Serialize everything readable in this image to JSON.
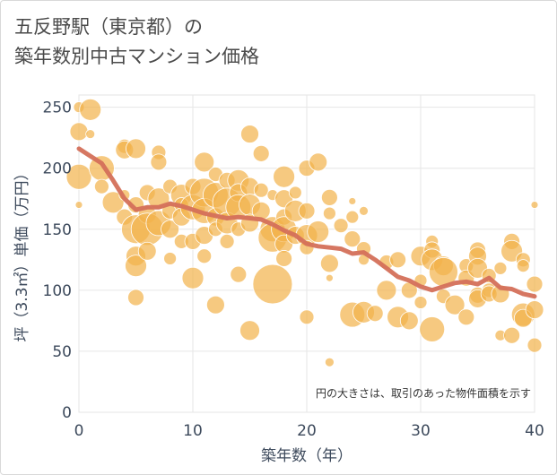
{
  "title_line1": "五反野駅（東京都）の",
  "title_line2": "築年数別中古マンション価格",
  "chart_data": {
    "type": "scatter",
    "title": "五反野駅（東京都）の 築年数別中古マンション価格",
    "xlabel": "築年数（年）",
    "ylabel": "坪（3.3㎡）単価（万円）",
    "xlim": [
      0,
      40
    ],
    "ylim": [
      0,
      260
    ],
    "xticks": [
      "0",
      "10",
      "20",
      "30",
      "40"
    ],
    "yticks": [
      "0",
      "50",
      "100",
      "150",
      "200",
      "250"
    ],
    "grid": true,
    "note": "円の大きさは、取引のあった物件面積を示す",
    "colors": {
      "bubble": "#f2b24a",
      "trend": "#d4705a"
    },
    "trend": {
      "x": [
        0,
        1,
        2,
        3,
        4,
        5,
        6,
        7,
        8,
        9,
        10,
        11,
        12,
        13,
        14,
        15,
        16,
        17,
        18,
        19,
        20,
        21,
        22,
        23,
        24,
        25,
        26,
        27,
        28,
        29,
        30,
        31,
        32,
        33,
        34,
        35,
        36,
        37,
        38,
        39,
        40
      ],
      "y": [
        216,
        210,
        204,
        190,
        175,
        166,
        168,
        168,
        171,
        169,
        166,
        163,
        161,
        159,
        160,
        159,
        158,
        154,
        149,
        145,
        138,
        136,
        135,
        134,
        130,
        131,
        125,
        118,
        111,
        108,
        103,
        100,
        103,
        106,
        107,
        105,
        110,
        102,
        101,
        97,
        95
      ]
    },
    "points": [
      {
        "x": 0,
        "y": 250,
        "s": 6
      },
      {
        "x": 0,
        "y": 230,
        "s": 10
      },
      {
        "x": 0,
        "y": 193,
        "s": 14
      },
      {
        "x": 0,
        "y": 170,
        "s": 4
      },
      {
        "x": 1,
        "y": 248,
        "s": 12
      },
      {
        "x": 1,
        "y": 228,
        "s": 5
      },
      {
        "x": 2,
        "y": 200,
        "s": 14
      },
      {
        "x": 2,
        "y": 185,
        "s": 8
      },
      {
        "x": 3,
        "y": 172,
        "s": 12
      },
      {
        "x": 4,
        "y": 218,
        "s": 8
      },
      {
        "x": 4,
        "y": 215,
        "s": 10
      },
      {
        "x": 4,
        "y": 178,
        "s": 6
      },
      {
        "x": 4,
        "y": 160,
        "s": 9
      },
      {
        "x": 5,
        "y": 216,
        "s": 11
      },
      {
        "x": 5,
        "y": 170,
        "s": 9
      },
      {
        "x": 5,
        "y": 150,
        "s": 16
      },
      {
        "x": 5,
        "y": 128,
        "s": 11
      },
      {
        "x": 5,
        "y": 120,
        "s": 12
      },
      {
        "x": 5,
        "y": 94,
        "s": 9
      },
      {
        "x": 6,
        "y": 180,
        "s": 9
      },
      {
        "x": 6,
        "y": 162,
        "s": 10
      },
      {
        "x": 6,
        "y": 150,
        "s": 18
      },
      {
        "x": 6,
        "y": 132,
        "s": 10
      },
      {
        "x": 7,
        "y": 213,
        "s": 8
      },
      {
        "x": 7,
        "y": 205,
        "s": 9
      },
      {
        "x": 7,
        "y": 175,
        "s": 12
      },
      {
        "x": 7,
        "y": 155,
        "s": 14
      },
      {
        "x": 8,
        "y": 185,
        "s": 8
      },
      {
        "x": 8,
        "y": 165,
        "s": 9
      },
      {
        "x": 8,
        "y": 150,
        "s": 10
      },
      {
        "x": 8,
        "y": 126,
        "s": 7
      },
      {
        "x": 9,
        "y": 178,
        "s": 12
      },
      {
        "x": 9,
        "y": 170,
        "s": 8
      },
      {
        "x": 9,
        "y": 160,
        "s": 10
      },
      {
        "x": 9,
        "y": 140,
        "s": 8
      },
      {
        "x": 10,
        "y": 185,
        "s": 9
      },
      {
        "x": 10,
        "y": 168,
        "s": 14
      },
      {
        "x": 10,
        "y": 140,
        "s": 9
      },
      {
        "x": 10,
        "y": 110,
        "s": 12
      },
      {
        "x": 11,
        "y": 205,
        "s": 11
      },
      {
        "x": 11,
        "y": 180,
        "s": 16
      },
      {
        "x": 11,
        "y": 165,
        "s": 14
      },
      {
        "x": 11,
        "y": 145,
        "s": 10
      },
      {
        "x": 11,
        "y": 128,
        "s": 8
      },
      {
        "x": 12,
        "y": 195,
        "s": 8
      },
      {
        "x": 12,
        "y": 178,
        "s": 14
      },
      {
        "x": 12,
        "y": 160,
        "s": 10
      },
      {
        "x": 12,
        "y": 150,
        "s": 8
      },
      {
        "x": 12,
        "y": 88,
        "s": 10
      },
      {
        "x": 13,
        "y": 190,
        "s": 9
      },
      {
        "x": 13,
        "y": 172,
        "s": 16
      },
      {
        "x": 13,
        "y": 155,
        "s": 12
      },
      {
        "x": 13,
        "y": 140,
        "s": 8
      },
      {
        "x": 14,
        "y": 190,
        "s": 12
      },
      {
        "x": 14,
        "y": 180,
        "s": 10
      },
      {
        "x": 14,
        "y": 168,
        "s": 14
      },
      {
        "x": 14,
        "y": 150,
        "s": 8
      },
      {
        "x": 14,
        "y": 113,
        "s": 9
      },
      {
        "x": 15,
        "y": 185,
        "s": 10
      },
      {
        "x": 15,
        "y": 170,
        "s": 12
      },
      {
        "x": 15,
        "y": 155,
        "s": 10
      },
      {
        "x": 15,
        "y": 67,
        "s": 11
      },
      {
        "x": 15,
        "y": 228,
        "s": 10
      },
      {
        "x": 16,
        "y": 212,
        "s": 9
      },
      {
        "x": 16,
        "y": 182,
        "s": 8
      },
      {
        "x": 16,
        "y": 165,
        "s": 10
      },
      {
        "x": 17,
        "y": 178,
        "s": 6
      },
      {
        "x": 17,
        "y": 150,
        "s": 14
      },
      {
        "x": 17,
        "y": 143,
        "s": 16
      },
      {
        "x": 17,
        "y": 105,
        "s": 22
      },
      {
        "x": 18,
        "y": 193,
        "s": 12
      },
      {
        "x": 18,
        "y": 175,
        "s": 10
      },
      {
        "x": 18,
        "y": 160,
        "s": 9
      },
      {
        "x": 18,
        "y": 150,
        "s": 14
      },
      {
        "x": 18,
        "y": 138,
        "s": 10
      },
      {
        "x": 18,
        "y": 126,
        "s": 9
      },
      {
        "x": 19,
        "y": 180,
        "s": 7
      },
      {
        "x": 19,
        "y": 165,
        "s": 12
      },
      {
        "x": 19,
        "y": 145,
        "s": 10
      },
      {
        "x": 20,
        "y": 200,
        "s": 9
      },
      {
        "x": 20,
        "y": 165,
        "s": 9
      },
      {
        "x": 20,
        "y": 145,
        "s": 12
      },
      {
        "x": 20,
        "y": 135,
        "s": 8
      },
      {
        "x": 20,
        "y": 78,
        "s": 8
      },
      {
        "x": 21,
        "y": 205,
        "s": 10
      },
      {
        "x": 21,
        "y": 148,
        "s": 12
      },
      {
        "x": 22,
        "y": 176,
        "s": 9
      },
      {
        "x": 22,
        "y": 163,
        "s": 7
      },
      {
        "x": 22,
        "y": 122,
        "s": 10
      },
      {
        "x": 22,
        "y": 110,
        "s": 4
      },
      {
        "x": 22,
        "y": 41,
        "s": 5
      },
      {
        "x": 23,
        "y": 153,
        "s": 8
      },
      {
        "x": 24,
        "y": 173,
        "s": 4
      },
      {
        "x": 24,
        "y": 160,
        "s": 7
      },
      {
        "x": 24,
        "y": 142,
        "s": 9
      },
      {
        "x": 24,
        "y": 80,
        "s": 14
      },
      {
        "x": 25,
        "y": 165,
        "s": 5
      },
      {
        "x": 25,
        "y": 134,
        "s": 8
      },
      {
        "x": 25,
        "y": 125,
        "s": 6
      },
      {
        "x": 25,
        "y": 82,
        "s": 12
      },
      {
        "x": 26,
        "y": 81,
        "s": 9
      },
      {
        "x": 27,
        "y": 123,
        "s": 8
      },
      {
        "x": 27,
        "y": 100,
        "s": 11
      },
      {
        "x": 28,
        "y": 125,
        "s": 9
      },
      {
        "x": 28,
        "y": 78,
        "s": 12
      },
      {
        "x": 29,
        "y": 100,
        "s": 9
      },
      {
        "x": 29,
        "y": 75,
        "s": 10
      },
      {
        "x": 30,
        "y": 128,
        "s": 11
      },
      {
        "x": 30,
        "y": 108,
        "s": 7
      },
      {
        "x": 30,
        "y": 90,
        "s": 7
      },
      {
        "x": 31,
        "y": 140,
        "s": 7
      },
      {
        "x": 31,
        "y": 133,
        "s": 9
      },
      {
        "x": 31,
        "y": 125,
        "s": 12
      },
      {
        "x": 31,
        "y": 68,
        "s": 14
      },
      {
        "x": 32,
        "y": 120,
        "s": 11
      },
      {
        "x": 32,
        "y": 115,
        "s": 16
      },
      {
        "x": 32,
        "y": 95,
        "s": 8
      },
      {
        "x": 33,
        "y": 88,
        "s": 11
      },
      {
        "x": 34,
        "y": 120,
        "s": 8
      },
      {
        "x": 34,
        "y": 110,
        "s": 9
      },
      {
        "x": 34,
        "y": 78,
        "s": 9
      },
      {
        "x": 35,
        "y": 133,
        "s": 9
      },
      {
        "x": 35,
        "y": 128,
        "s": 10
      },
      {
        "x": 35,
        "y": 118,
        "s": 11
      },
      {
        "x": 35,
        "y": 96,
        "s": 9
      },
      {
        "x": 35,
        "y": 93,
        "s": 10
      },
      {
        "x": 36,
        "y": 112,
        "s": 8
      },
      {
        "x": 36,
        "y": 100,
        "s": 8
      },
      {
        "x": 36,
        "y": 97,
        "s": 9
      },
      {
        "x": 37,
        "y": 118,
        "s": 7
      },
      {
        "x": 37,
        "y": 97,
        "s": 10
      },
      {
        "x": 37,
        "y": 63,
        "s": 6
      },
      {
        "x": 38,
        "y": 140,
        "s": 9
      },
      {
        "x": 38,
        "y": 132,
        "s": 12
      },
      {
        "x": 38,
        "y": 63,
        "s": 9
      },
      {
        "x": 39,
        "y": 125,
        "s": 8
      },
      {
        "x": 39,
        "y": 120,
        "s": 7
      },
      {
        "x": 39,
        "y": 80,
        "s": 13
      },
      {
        "x": 39,
        "y": 77,
        "s": 10
      },
      {
        "x": 40,
        "y": 170,
        "s": 4
      },
      {
        "x": 40,
        "y": 105,
        "s": 9
      },
      {
        "x": 40,
        "y": 84,
        "s": 10
      },
      {
        "x": 40,
        "y": 55,
        "s": 8
      }
    ]
  }
}
